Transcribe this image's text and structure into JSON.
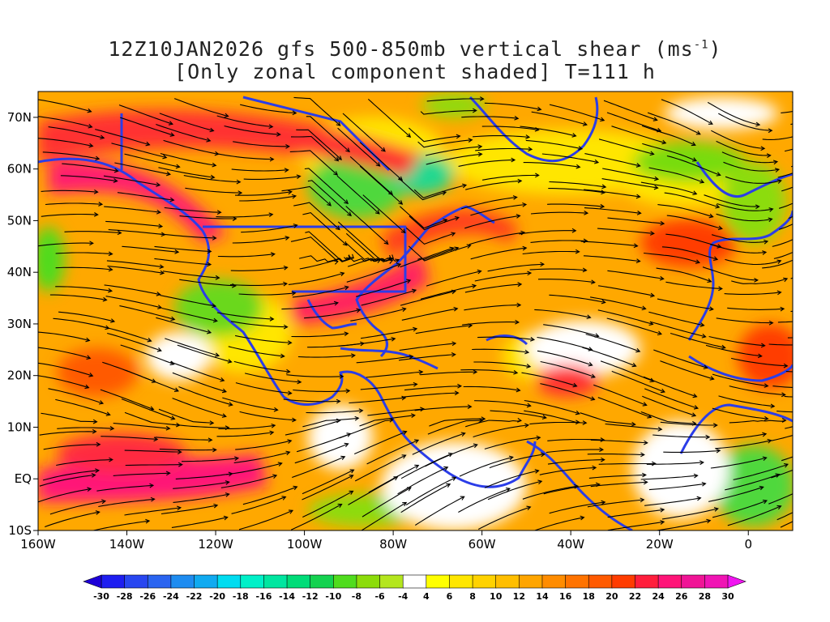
{
  "title_line1_prefix": "12Z10JAN2026 gfs 500-850mb vertical shear (ms",
  "title_line1_sup": "-1",
  "title_line1_suffix": ")",
  "title_line2": "[Only zonal component shaded] T=111 h",
  "axes": {
    "lon_labels": [
      "160W",
      "140W",
      "120W",
      "100W",
      "80W",
      "60W",
      "40W",
      "20W",
      "0"
    ],
    "lon_values": [
      -160,
      -140,
      -120,
      -100,
      -80,
      -60,
      -40,
      -20,
      0
    ],
    "lat_labels": [
      "10S",
      "EQ",
      "10N",
      "20N",
      "30N",
      "40N",
      "50N",
      "60N",
      "70N"
    ],
    "lat_values": [
      -10,
      0,
      10,
      20,
      30,
      40,
      50,
      60,
      70
    ],
    "lon_range": [
      -160,
      10
    ],
    "lat_range": [
      -10,
      75
    ]
  },
  "colorbar": {
    "labels": [
      "-30",
      "-28",
      "-26",
      "-24",
      "-22",
      "-20",
      "-18",
      "-16",
      "-14",
      "-12",
      "-10",
      "-8",
      "-6",
      "-4",
      "4",
      "6",
      "8",
      "10",
      "12",
      "14",
      "16",
      "18",
      "20",
      "22",
      "24",
      "26",
      "28",
      "30"
    ],
    "colors": [
      "#1e1ef0",
      "#2846f0",
      "#2a64f0",
      "#1e8cf0",
      "#10aaf0",
      "#00dcf0",
      "#00f0c8",
      "#00e6a0",
      "#00dc78",
      "#14d250",
      "#50dc1e",
      "#8cdc0a",
      "#b4e61e",
      "#ffffff",
      "#ffff00",
      "#ffe600",
      "#ffd200",
      "#ffbe00",
      "#ffa500",
      "#ff8c00",
      "#ff7300",
      "#ff5a00",
      "#ff3c00",
      "#ff1e3c",
      "#ff1478",
      "#f01496",
      "#f014b4"
    ]
  },
  "colors": {
    "coast": "#2b3de8",
    "stream": "#000000"
  }
}
